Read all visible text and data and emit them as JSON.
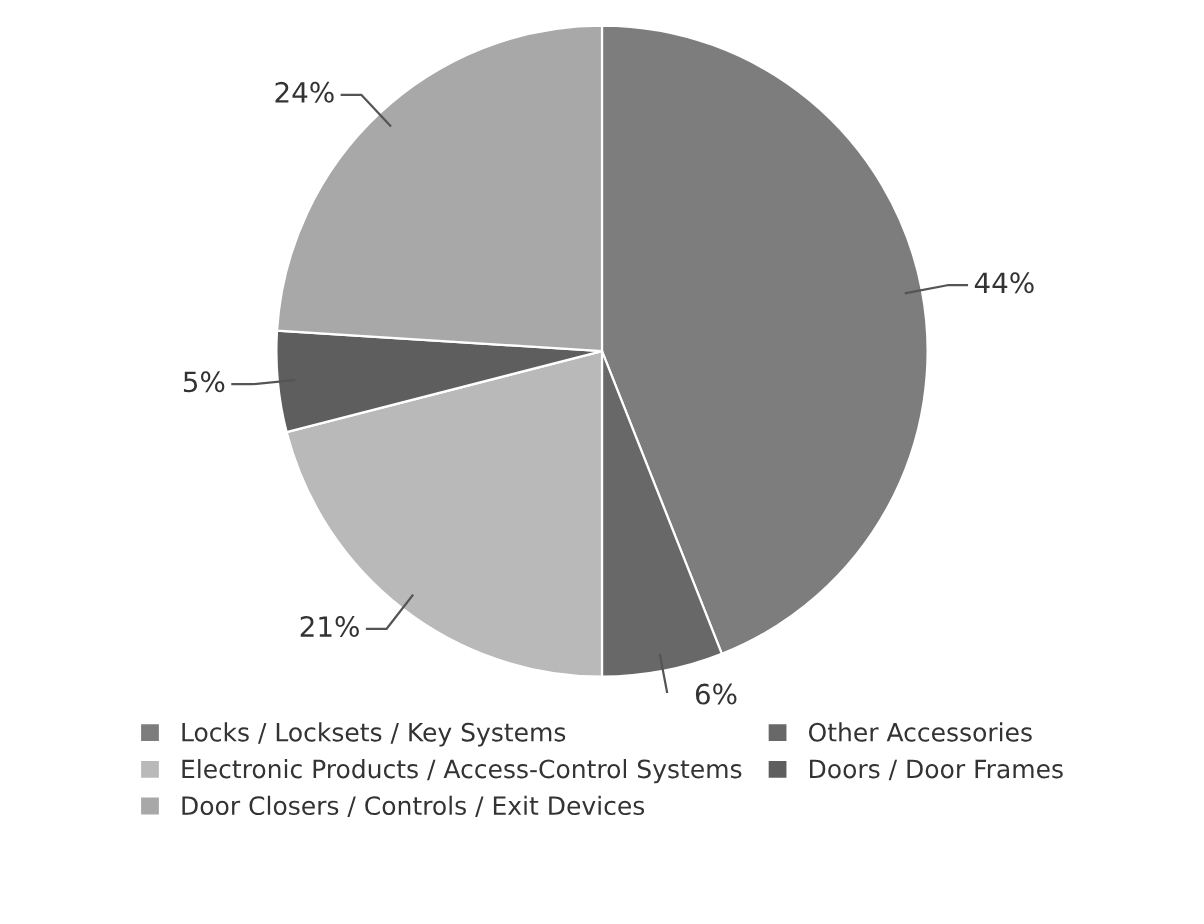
{
  "chart_data": {
    "type": "pie",
    "categories": [
      "Locks / Locksets / Key Systems",
      "Other Accessories",
      "Electronic Products / Access-Control Systems",
      "Doors / Door Frames",
      "Door Closers / Controls / Exit Devices"
    ],
    "values": [
      44,
      6,
      21,
      5,
      24
    ],
    "value_labels": [
      "44%",
      "6%",
      "21%",
      "5%",
      "24%"
    ],
    "colors": [
      "#7d7d7d",
      "#686868",
      "#b9b9b9",
      "#5e5e5e",
      "#a8a8a8"
    ],
    "legend": "bottom"
  }
}
